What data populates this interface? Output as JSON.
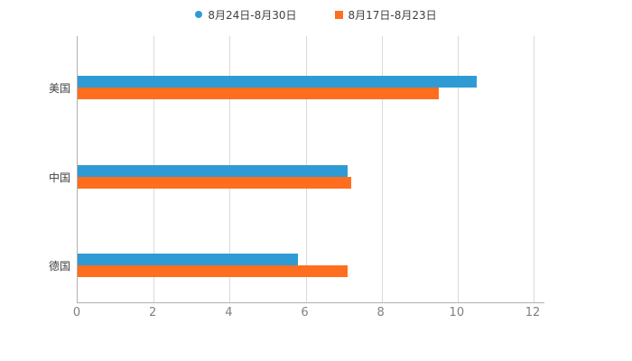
{
  "chart_data": {
    "type": "bar",
    "orientation": "horizontal",
    "title": "",
    "categories": [
      "美国",
      "中国",
      "德国"
    ],
    "series": [
      {
        "name": "8月24日-8月30日",
        "color": "#2E9BD5",
        "marker": "circle",
        "values": [
          10.5,
          7.1,
          5.8
        ]
      },
      {
        "name": "8月17日-8月23日",
        "color": "#FF6E1E",
        "marker": "square",
        "values": [
          9.5,
          7.2,
          7.1
        ]
      }
    ],
    "xlim": [
      0,
      12
    ],
    "xticks": [
      0,
      2,
      4,
      6,
      8,
      10,
      12
    ],
    "grid": true,
    "legend_position": "top",
    "axis_color": "#b0b0b0",
    "gridline_color": "#d9d9d9"
  }
}
